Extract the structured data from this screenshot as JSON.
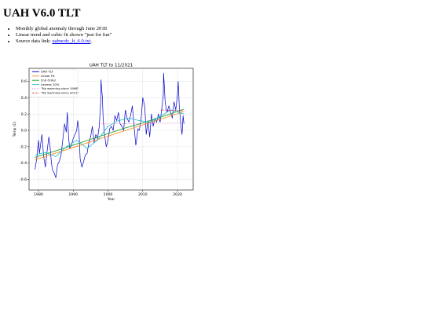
{
  "page": {
    "title": "UAH V6.0 TLT",
    "notes": [
      {
        "text": "Monthly global anomaly through June 2018"
      },
      {
        "text": "Linear trend and cubic fit shown \"just for fun\""
      },
      {
        "text": "Source data link: ",
        "link_text": "uahncdc_lt_6.0.txt",
        "suffix": "."
      }
    ]
  },
  "colors": {
    "uah": "#0000cc",
    "linear": "#ff8c1a",
    "second_order": "#2ca02c",
    "lowess": "#17becf",
    "no_warm_1998": "#e377c2",
    "no_warm_2011": "#d62728",
    "grid": "#d9d9d9",
    "axes": "#000000",
    "link": "#0000ee"
  },
  "chart_data": {
    "type": "line",
    "title": "UAH TLT to 11/2021",
    "xlabel": "Year",
    "ylabel": "Temp (C)",
    "xlim": [
      1977.3,
      2024.5
    ],
    "ylim": [
      -0.73,
      0.76
    ],
    "xticks": [
      1980,
      1990,
      2000,
      2010,
      2020
    ],
    "yticks": [
      -0.6,
      -0.4,
      -0.2,
      0.0,
      0.2,
      0.4,
      0.6
    ],
    "ytick_labels": [
      "-0.6",
      "-0.4",
      "-0.2",
      "0.0",
      "0.2",
      "0.4",
      "0.6"
    ],
    "grid": true,
    "legend_position": "top-left",
    "series": [
      {
        "name": "UAH TLT",
        "style": "line",
        "x": [
          1979.0,
          1979.5,
          1980.0,
          1980.3,
          1980.6,
          1981.0,
          1981.5,
          1982.0,
          1982.5,
          1983.0,
          1983.3,
          1983.7,
          1984.0,
          1984.5,
          1985.0,
          1985.5,
          1986.0,
          1986.5,
          1987.0,
          1987.5,
          1988.0,
          1988.3,
          1988.7,
          1989.0,
          1989.5,
          1990.0,
          1990.5,
          1991.0,
          1991.3,
          1991.7,
          1992.0,
          1992.5,
          1993.0,
          1993.5,
          1994.0,
          1994.5,
          1995.0,
          1995.5,
          1996.0,
          1996.5,
          1997.0,
          1997.5,
          1997.9,
          1998.0,
          1998.2,
          1998.4,
          1998.6,
          1999.0,
          1999.5,
          2000.0,
          2000.5,
          2001.0,
          2001.5,
          2002.0,
          2002.5,
          2003.0,
          2003.5,
          2004.0,
          2004.5,
          2005.0,
          2005.5,
          2006.0,
          2006.5,
          2007.0,
          2007.5,
          2008.0,
          2008.3,
          2008.6,
          2009.0,
          2009.5,
          2010.0,
          2010.3,
          2010.6,
          2011.0,
          2011.5,
          2012.0,
          2012.5,
          2013.0,
          2013.5,
          2014.0,
          2014.5,
          2015.0,
          2015.5,
          2015.9,
          2016.0,
          2016.2,
          2016.4,
          2016.6,
          2017.0,
          2017.5,
          2018.0,
          2018.5,
          2019.0,
          2019.5,
          2020.0,
          2020.2,
          2020.5,
          2021.0,
          2021.3,
          2021.6,
          2021.85
        ],
        "y": [
          -0.48,
          -0.35,
          -0.12,
          -0.28,
          -0.18,
          -0.05,
          -0.32,
          -0.45,
          -0.25,
          -0.08,
          -0.18,
          -0.38,
          -0.48,
          -0.52,
          -0.58,
          -0.42,
          -0.38,
          -0.3,
          -0.12,
          0.08,
          -0.02,
          0.22,
          -0.1,
          -0.22,
          -0.18,
          -0.1,
          -0.05,
          0.0,
          0.12,
          -0.05,
          -0.35,
          -0.45,
          -0.38,
          -0.3,
          -0.28,
          -0.15,
          -0.08,
          0.05,
          -0.15,
          -0.05,
          -0.1,
          0.05,
          0.35,
          0.62,
          0.5,
          0.4,
          0.15,
          -0.05,
          -0.2,
          -0.12,
          0.02,
          0.05,
          0.0,
          0.18,
          0.12,
          0.22,
          0.08,
          0.05,
          0.0,
          0.25,
          0.15,
          0.1,
          0.18,
          0.3,
          0.05,
          -0.18,
          -0.1,
          0.02,
          0.0,
          0.12,
          0.4,
          0.35,
          0.28,
          -0.05,
          0.12,
          -0.08,
          0.2,
          0.05,
          0.15,
          0.1,
          0.2,
          0.1,
          0.28,
          0.42,
          0.7,
          0.55,
          0.38,
          0.3,
          0.22,
          0.3,
          0.22,
          0.15,
          0.35,
          0.25,
          0.45,
          0.6,
          0.3,
          0.05,
          -0.05,
          0.18,
          0.08
        ]
      },
      {
        "name": "Linear Fit",
        "style": "line",
        "x": [
          1979.0,
          2021.85
        ],
        "y": [
          -0.36,
          0.23
        ]
      },
      {
        "name": "2nd Order",
        "style": "line",
        "x": [
          1979,
          1985,
          1990,
          1995,
          2000,
          2005,
          2010,
          2015,
          2021.85
        ],
        "y": [
          -0.33,
          -0.25,
          -0.18,
          -0.11,
          -0.04,
          0.03,
          0.09,
          0.16,
          0.26
        ]
      },
      {
        "name": "Lowess 20%",
        "style": "line",
        "x": [
          1979,
          1982,
          1985,
          1988,
          1991,
          1994,
          1997,
          2000,
          2003,
          2006,
          2009,
          2012,
          2015,
          2018,
          2021.85
        ],
        "y": [
          -0.3,
          -0.27,
          -0.32,
          -0.2,
          -0.12,
          -0.22,
          -0.12,
          0.05,
          0.12,
          0.15,
          0.12,
          0.1,
          0.17,
          0.25,
          0.2
        ]
      },
      {
        "name": "\"No warming since 1998\"",
        "style": "dotted",
        "x": [
          1998.0,
          2021.85
        ],
        "y": [
          0.08,
          0.09
        ]
      },
      {
        "name": "\"No warming since 2011\"",
        "style": "dashed",
        "x": [
          2015.5,
          2021.85
        ],
        "y": [
          0.25,
          0.24
        ]
      }
    ]
  }
}
